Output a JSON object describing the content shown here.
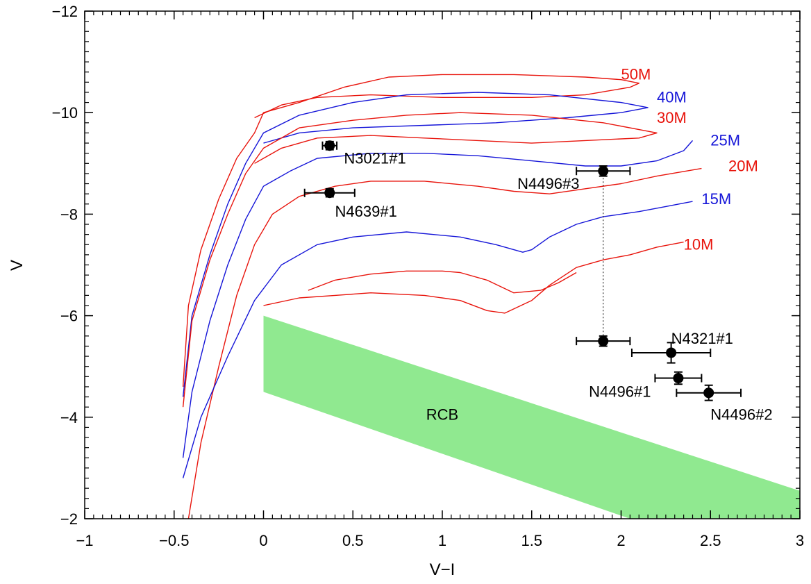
{
  "chart_data": {
    "type": "line",
    "title": "",
    "xlabel": "V−I",
    "ylabel": "V",
    "xlim": [
      -1,
      3
    ],
    "ylim": [
      -2,
      -12
    ],
    "y_axis_inverted": true,
    "xticks": [
      -1,
      -0.5,
      0,
      0.5,
      1,
      1.5,
      2,
      2.5,
      3
    ],
    "xtick_labels": [
      "−1",
      "−0.5",
      "0",
      "0.5",
      "1",
      "1.5",
      "2",
      "2.5",
      "3"
    ],
    "yticks": [
      -12,
      -10,
      -8,
      -6,
      -4,
      -2
    ],
    "ytick_labels": [
      "−12",
      "−10",
      "−8",
      "−6",
      "−4",
      "−2"
    ],
    "grid": false,
    "colors": {
      "red": "#e8140c",
      "blue": "#1515d8",
      "rcb": "#90e990",
      "points": "#000000"
    },
    "tracks": [
      {
        "label": "50M",
        "color": "red",
        "label_pos": [
          2.0,
          -10.65
        ],
        "x": [
          -0.45,
          -0.42,
          -0.35,
          -0.25,
          -0.15,
          -0.05,
          0.0,
          0.2,
          0.45,
          0.7,
          1.0,
          1.4,
          1.8,
          2.0,
          2.1,
          2.05,
          1.8,
          1.5,
          1.0,
          0.6,
          0.3,
          0.1,
          -0.05
        ],
        "y": [
          -4.6,
          -6.2,
          -7.3,
          -8.3,
          -9.1,
          -9.6,
          -10.0,
          -10.2,
          -10.5,
          -10.7,
          -10.75,
          -10.75,
          -10.7,
          -10.65,
          -10.58,
          -10.5,
          -10.35,
          -10.3,
          -10.3,
          -10.35,
          -10.3,
          -10.15,
          -9.9
        ]
      },
      {
        "label": "40M",
        "color": "blue",
        "label_pos": [
          2.2,
          -10.2
        ],
        "x": [
          -0.45,
          -0.4,
          -0.3,
          -0.2,
          -0.1,
          0.0,
          0.2,
          0.5,
          0.8,
          1.2,
          1.6,
          2.0,
          2.15,
          2.0,
          1.7,
          1.3,
          0.9,
          0.5,
          0.2,
          0.0
        ],
        "y": [
          -4.4,
          -6.0,
          -7.2,
          -8.2,
          -9.0,
          -9.6,
          -9.95,
          -10.2,
          -10.35,
          -10.4,
          -10.35,
          -10.2,
          -10.1,
          -10.0,
          -9.9,
          -9.8,
          -9.75,
          -9.7,
          -9.6,
          -9.4
        ]
      },
      {
        "label": "30M",
        "color": "red",
        "label_pos": [
          2.2,
          -9.8
        ],
        "x": [
          -0.45,
          -0.4,
          -0.3,
          -0.2,
          -0.1,
          0.0,
          0.2,
          0.5,
          0.8,
          1.1,
          1.5,
          1.9,
          2.2,
          2.1,
          1.8,
          1.5,
          1.2,
          0.9,
          0.6,
          0.3,
          0.1,
          -0.05
        ],
        "y": [
          -4.2,
          -5.9,
          -7.1,
          -8.0,
          -8.8,
          -9.3,
          -9.7,
          -9.85,
          -9.95,
          -10.0,
          -9.95,
          -9.8,
          -9.6,
          -9.5,
          -9.45,
          -9.4,
          -9.45,
          -9.5,
          -9.55,
          -9.5,
          -9.3,
          -9.0
        ]
      },
      {
        "label": "25M",
        "color": "blue",
        "label_pos": [
          2.5,
          -9.35
        ],
        "x": [
          -0.45,
          -0.4,
          -0.3,
          -0.2,
          -0.1,
          0.0,
          0.15,
          0.3,
          0.6,
          0.9,
          1.2,
          1.5,
          1.8,
          2.0,
          2.2,
          2.35,
          2.4
        ],
        "y": [
          -3.2,
          -4.5,
          -5.9,
          -7.0,
          -7.9,
          -8.55,
          -8.85,
          -9.1,
          -9.2,
          -9.2,
          -9.15,
          -9.05,
          -8.95,
          -8.95,
          -9.05,
          -9.25,
          -9.45
        ]
      },
      {
        "label": "20M",
        "color": "red",
        "label_pos": [
          2.6,
          -8.85
        ],
        "x": [
          -0.42,
          -0.35,
          -0.25,
          -0.15,
          -0.05,
          0.05,
          0.2,
          0.4,
          0.6,
          0.9,
          1.2,
          1.4,
          1.6,
          1.8,
          2.0,
          2.2,
          2.45
        ],
        "y": [
          -2.0,
          -3.5,
          -5.0,
          -6.4,
          -7.4,
          -8.0,
          -8.35,
          -8.55,
          -8.65,
          -8.65,
          -8.55,
          -8.45,
          -8.4,
          -8.5,
          -8.6,
          -8.75,
          -8.9
        ]
      },
      {
        "label": "15M",
        "color": "blue",
        "label_pos": [
          2.45,
          -8.2
        ],
        "x": [
          -0.45,
          -0.35,
          -0.2,
          -0.05,
          0.1,
          0.3,
          0.5,
          0.8,
          1.1,
          1.3,
          1.45,
          1.5,
          1.6,
          1.75,
          1.9,
          2.1,
          2.25,
          2.4
        ],
        "y": [
          -2.8,
          -4.0,
          -5.2,
          -6.3,
          -7.0,
          -7.4,
          -7.55,
          -7.65,
          -7.55,
          -7.4,
          -7.25,
          -7.3,
          -7.55,
          -7.8,
          -7.95,
          -8.05,
          -8.15,
          -8.25
        ]
      },
      {
        "label": "10M",
        "color": "red",
        "label_pos": [
          2.35,
          -7.3
        ],
        "x": [
          0.0,
          0.2,
          0.4,
          0.6,
          0.9,
          1.1,
          1.25,
          1.35,
          1.5,
          1.6,
          1.75,
          1.9,
          2.05,
          2.2,
          2.35
        ],
        "y": [
          -6.2,
          -6.35,
          -6.4,
          -6.45,
          -6.4,
          -6.3,
          -6.1,
          -6.05,
          -6.3,
          -6.6,
          -6.95,
          -7.1,
          -7.2,
          -7.35,
          -7.45
        ]
      },
      {
        "label": "",
        "color": "red",
        "label_pos": null,
        "x": [
          0.25,
          0.4,
          0.6,
          0.8,
          1.0,
          1.1,
          1.25,
          1.4,
          1.55,
          1.65,
          1.75
        ],
        "y": [
          -6.5,
          -6.7,
          -6.82,
          -6.88,
          -6.88,
          -6.85,
          -6.7,
          -6.45,
          -6.5,
          -6.65,
          -6.85
        ]
      }
    ],
    "rcb_band": {
      "label": "RCB",
      "upper": [
        [
          0,
          -6.0
        ],
        [
          3,
          -2.55
        ]
      ],
      "lower": [
        [
          0,
          -4.5
        ],
        [
          2.05,
          -2.0
        ]
      ]
    },
    "points": [
      {
        "label": "N3021#1",
        "x": 0.37,
        "y": -9.35,
        "xerr": 0.04,
        "yerr": 0.08,
        "label_pos": [
          0.45,
          -9.0
        ]
      },
      {
        "label": "N4639#1",
        "x": 0.37,
        "y": -8.42,
        "xerr": 0.14,
        "yerr": 0.08,
        "label_pos": [
          0.4,
          -7.95
        ]
      },
      {
        "label": "N4496#3",
        "x": 1.9,
        "y": -8.85,
        "xerr": 0.15,
        "yerr": 0.1,
        "label_pos": [
          1.42,
          -8.5
        ]
      },
      {
        "label": "N4321#1",
        "x": 2.28,
        "y": -5.27,
        "xerr": 0.22,
        "yerr": 0.2,
        "label_pos": [
          2.28,
          -5.45
        ]
      },
      {
        "label": "N4496#1",
        "x": 2.32,
        "y": -4.77,
        "xerr": 0.13,
        "yerr": 0.12,
        "label_pos": [
          1.82,
          -4.4
        ]
      },
      {
        "label": "N4496#2",
        "x": 2.49,
        "y": -4.48,
        "xerr": 0.18,
        "yerr": 0.15,
        "label_pos": [
          2.5,
          -3.95
        ]
      },
      {
        "label": "",
        "x": 1.9,
        "y": -5.5,
        "xerr": 0.15,
        "yerr": 0.1,
        "label_pos": null
      }
    ],
    "connector": {
      "x": 1.9,
      "y_from": -8.85,
      "y_to": -5.5,
      "style": "dotted"
    }
  }
}
